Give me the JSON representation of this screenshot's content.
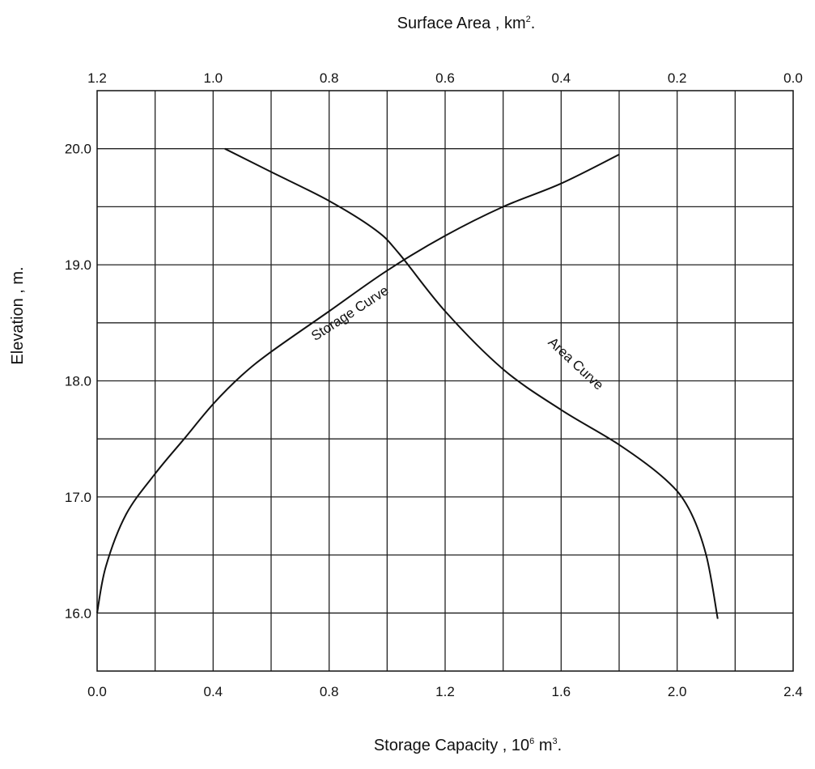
{
  "chart_data": {
    "type": "line",
    "top_axis": {
      "label": "Surface Area , km",
      "label_sup": "2",
      "label_end": ".",
      "range": [
        1.2,
        0.0
      ],
      "ticks": [
        "1.2",
        "1.0",
        "0.8",
        "0.6",
        "0.4",
        "0.2",
        "0.0"
      ]
    },
    "bottom_axis": {
      "label": "Storage Capacity , 10",
      "label_sup1": "6",
      "label_mid": " m",
      "label_sup2": "3",
      "label_end": ".",
      "range": [
        0.0,
        2.4
      ],
      "ticks": [
        "0.0",
        "0.4",
        "0.8",
        "1.2",
        "1.6",
        "2.0",
        "2.4"
      ]
    },
    "left_axis": {
      "label": "Elevation , m.",
      "range": [
        15.5,
        20.5
      ],
      "ticks": [
        "16.0",
        "17.0",
        "18.0",
        "19.0",
        "20.0"
      ]
    },
    "grid": true,
    "series": [
      {
        "name": "Storage Curve",
        "axis": "bottom",
        "x": [
          0.0,
          0.03,
          0.1,
          0.2,
          0.3,
          0.4,
          0.5,
          0.6,
          0.8,
          1.0,
          1.2,
          1.4,
          1.6,
          1.8
        ],
        "y": [
          16.0,
          16.4,
          16.85,
          17.2,
          17.5,
          17.8,
          18.05,
          18.25,
          18.6,
          18.95,
          19.25,
          19.5,
          19.7,
          19.95
        ]
      },
      {
        "name": "Area Curve",
        "axis": "top",
        "x": [
          0.98,
          0.9,
          0.8,
          0.72,
          0.68,
          0.6,
          0.5,
          0.4,
          0.3,
          0.22,
          0.18,
          0.15,
          0.13
        ],
        "y": [
          20.0,
          19.8,
          19.55,
          19.3,
          19.1,
          18.6,
          18.1,
          17.75,
          17.45,
          17.15,
          16.9,
          16.5,
          15.95
        ]
      }
    ]
  }
}
